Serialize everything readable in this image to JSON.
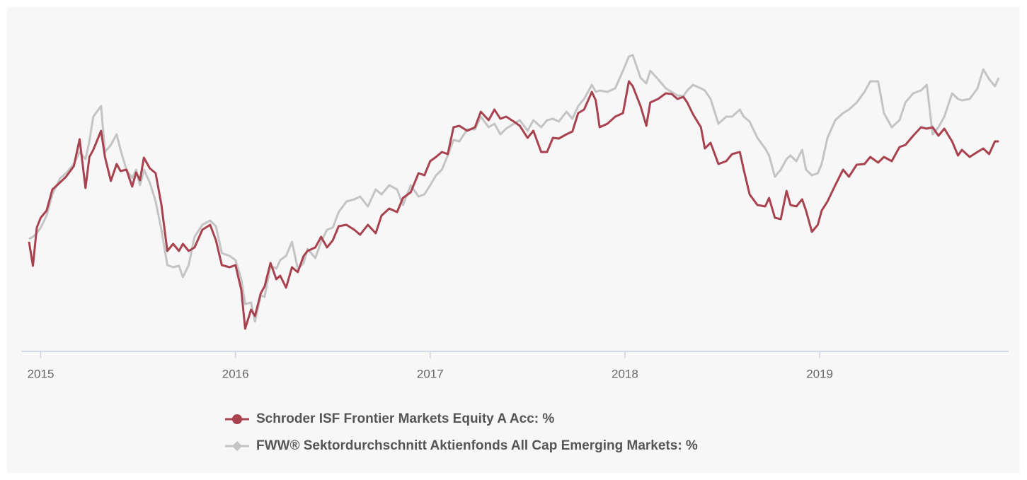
{
  "chart_data": {
    "type": "line",
    "x": [
      2014.94,
      2014.96,
      2014.98,
      2015.0,
      2015.03,
      2015.06,
      2015.1,
      2015.13,
      2015.17,
      2015.2,
      2015.23,
      2015.25,
      2015.27,
      2015.31,
      2015.33,
      2015.36,
      2015.39,
      2015.41,
      2015.44,
      2015.47,
      2015.49,
      2015.51,
      2015.53,
      2015.56,
      2015.59,
      2015.62,
      2015.65,
      2015.68,
      2015.71,
      2015.73,
      2015.76,
      2015.79,
      2015.83,
      2015.87,
      2015.9,
      2015.93,
      2015.97,
      2016.0,
      2016.03,
      2016.05,
      2016.08,
      2016.1,
      2016.13,
      2016.15,
      2016.18,
      2016.21,
      2016.23,
      2016.26,
      2016.29,
      2016.32,
      2016.35,
      2016.37,
      2016.41,
      2016.44,
      2016.47,
      2016.5,
      2016.53,
      2016.57,
      2016.61,
      2016.64,
      2016.68,
      2016.72,
      2016.75,
      2016.79,
      2016.83,
      2016.86,
      2016.9,
      2016.94,
      2016.97,
      2017.0,
      2017.03,
      2017.06,
      2017.09,
      2017.12,
      2017.15,
      2017.19,
      2017.23,
      2017.26,
      2017.3,
      2017.33,
      2017.36,
      2017.39,
      2017.43,
      2017.46,
      2017.5,
      2017.53,
      2017.57,
      2017.6,
      2017.63,
      2017.66,
      2017.7,
      2017.73,
      2017.76,
      2017.79,
      2017.83,
      2017.85,
      2017.87,
      2017.91,
      2017.95,
      2017.99,
      2018.02,
      2018.04,
      2018.08,
      2018.11,
      2018.13,
      2018.17,
      2018.21,
      2018.24,
      2018.27,
      2018.3,
      2018.32,
      2018.35,
      2018.39,
      2018.41,
      2018.44,
      2018.48,
      2018.52,
      2018.55,
      2018.59,
      2018.61,
      2018.64,
      2018.68,
      2018.72,
      2018.74,
      2018.77,
      2018.8,
      2018.83,
      2018.85,
      2018.88,
      2018.91,
      2018.93,
      2018.96,
      2018.99,
      2019.01,
      2019.04,
      2019.08,
      2019.12,
      2019.15,
      2019.19,
      2019.23,
      2019.26,
      2019.3,
      2019.33,
      2019.37,
      2019.41,
      2019.44,
      2019.48,
      2019.52,
      2019.55,
      2019.58,
      2019.61,
      2019.64,
      2019.68,
      2019.71,
      2019.73,
      2019.77,
      2019.81,
      2019.84,
      2019.87,
      2019.9,
      2019.92
    ],
    "series": [
      {
        "name": "Schroder ISF Frontier Markets Equity A Acc: %",
        "color": "#a8424f",
        "values": [
          155,
          121,
          175,
          189,
          199,
          229,
          239,
          247,
          262,
          300,
          231,
          275,
          285,
          312,
          275,
          241,
          265,
          255,
          257,
          233,
          253,
          242,
          274,
          259,
          252,
          207,
          142,
          152,
          142,
          152,
          142,
          147,
          172,
          179,
          157,
          122,
          119,
          122,
          87,
          32,
          59,
          50,
          82,
          92,
          125,
          102,
          107,
          90,
          119,
          112,
          135,
          142,
          147,
          162,
          147,
          157,
          177,
          179,
          172,
          165,
          179,
          167,
          192,
          202,
          197,
          217,
          225,
          252,
          249,
          269,
          275,
          282,
          279,
          317,
          319,
          312,
          317,
          339,
          327,
          342,
          329,
          332,
          325,
          319,
          302,
          312,
          282,
          282,
          302,
          301,
          307,
          311,
          337,
          342,
          367,
          355,
          317,
          322,
          332,
          337,
          382,
          375,
          347,
          319,
          352,
          357,
          365,
          364,
          357,
          360,
          352,
          335,
          317,
          287,
          295,
          265,
          269,
          279,
          282,
          257,
          222,
          207,
          205,
          217,
          189,
          187,
          227,
          207,
          205,
          215,
          199,
          169,
          179,
          199,
          212,
          235,
          257,
          247,
          264,
          265,
          275,
          267,
          275,
          269,
          289,
          292,
          305,
          317,
          315,
          317,
          305,
          315,
          297,
          277,
          285,
          275,
          282,
          287,
          279,
          297,
          297
        ]
      },
      {
        "name": "FWW® Sektordurchschnitt Aktienfonds All Cap Emerging Markets: %",
        "color": "#c4c4c4",
        "values": [
          159,
          162,
          167,
          175,
          192,
          222,
          245,
          252,
          265,
          282,
          272,
          297,
          332,
          347,
          282,
          292,
          307,
          285,
          257,
          245,
          257,
          235,
          257,
          239,
          212,
          172,
          122,
          119,
          121,
          105,
          122,
          162,
          179,
          185,
          177,
          139,
          135,
          129,
          102,
          67,
          69,
          42,
          79,
          77,
          121,
          117,
          129,
          135,
          155,
          117,
          125,
          145,
          132,
          155,
          172,
          175,
          197,
          212,
          215,
          219,
          205,
          229,
          222,
          235,
          229,
          207,
          235,
          219,
          222,
          235,
          249,
          257,
          277,
          299,
          297,
          314,
          314,
          332,
          317,
          322,
          307,
          315,
          322,
          327,
          312,
          327,
          317,
          327,
          329,
          325,
          339,
          329,
          347,
          357,
          377,
          367,
          369,
          367,
          372,
          397,
          417,
          419,
          387,
          379,
          397,
          385,
          372,
          367,
          362,
          361,
          369,
          377,
          372,
          369,
          357,
          322,
          332,
          332,
          342,
          332,
          325,
          302,
          287,
          277,
          247,
          257,
          272,
          277,
          269,
          285,
          257,
          249,
          252,
          265,
          302,
          327,
          337,
          342,
          352,
          367,
          382,
          382,
          337,
          317,
          327,
          352,
          365,
          369,
          377,
          307,
          317,
          332,
          365,
          357,
          355,
          357,
          372,
          399,
          385,
          375,
          387
        ]
      }
    ],
    "xlim": [
      2014.9,
      2019.97
    ],
    "xticks": [
      2015,
      2016,
      2017,
      2018,
      2019
    ],
    "ylim": [
      0,
      450
    ]
  }
}
